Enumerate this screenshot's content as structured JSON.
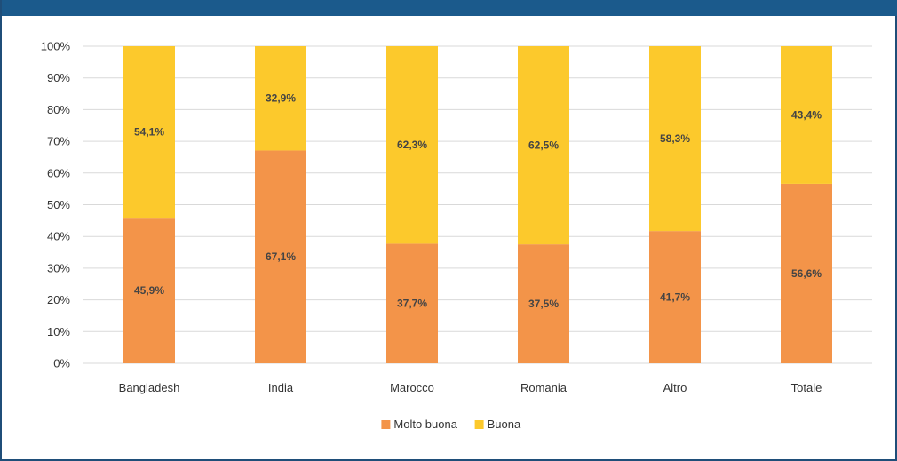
{
  "chart_data": {
    "type": "bar",
    "stacked": true,
    "categories": [
      "Bangladesh",
      "India",
      "Marocco",
      "Romania",
      "Altro",
      "Totale"
    ],
    "series": [
      {
        "name": "Molto buona",
        "color": "#f39449",
        "values": [
          45.9,
          67.1,
          37.7,
          37.5,
          41.7,
          56.6
        ],
        "labels": [
          "45,9%",
          "67,1%",
          "37,7%",
          "37,5%",
          "41,7%",
          "56,6%"
        ]
      },
      {
        "name": "Buona",
        "color": "#fcc92c",
        "values": [
          54.1,
          32.9,
          62.3,
          62.5,
          58.3,
          43.4
        ],
        "labels": [
          "54,1%",
          "32,9%",
          "62,3%",
          "62,5%",
          "58,3%",
          "43,4%"
        ]
      }
    ],
    "y_ticks": [
      "0%",
      "10%",
      "20%",
      "30%",
      "40%",
      "50%",
      "60%",
      "70%",
      "80%",
      "90%",
      "100%"
    ],
    "ylim": [
      0,
      100
    ],
    "grid": true,
    "legend_position": "bottom"
  },
  "colors": {
    "frame": "#1f4e79",
    "header_bar": "#1b5a8c",
    "grid": "#d9d9d9"
  }
}
